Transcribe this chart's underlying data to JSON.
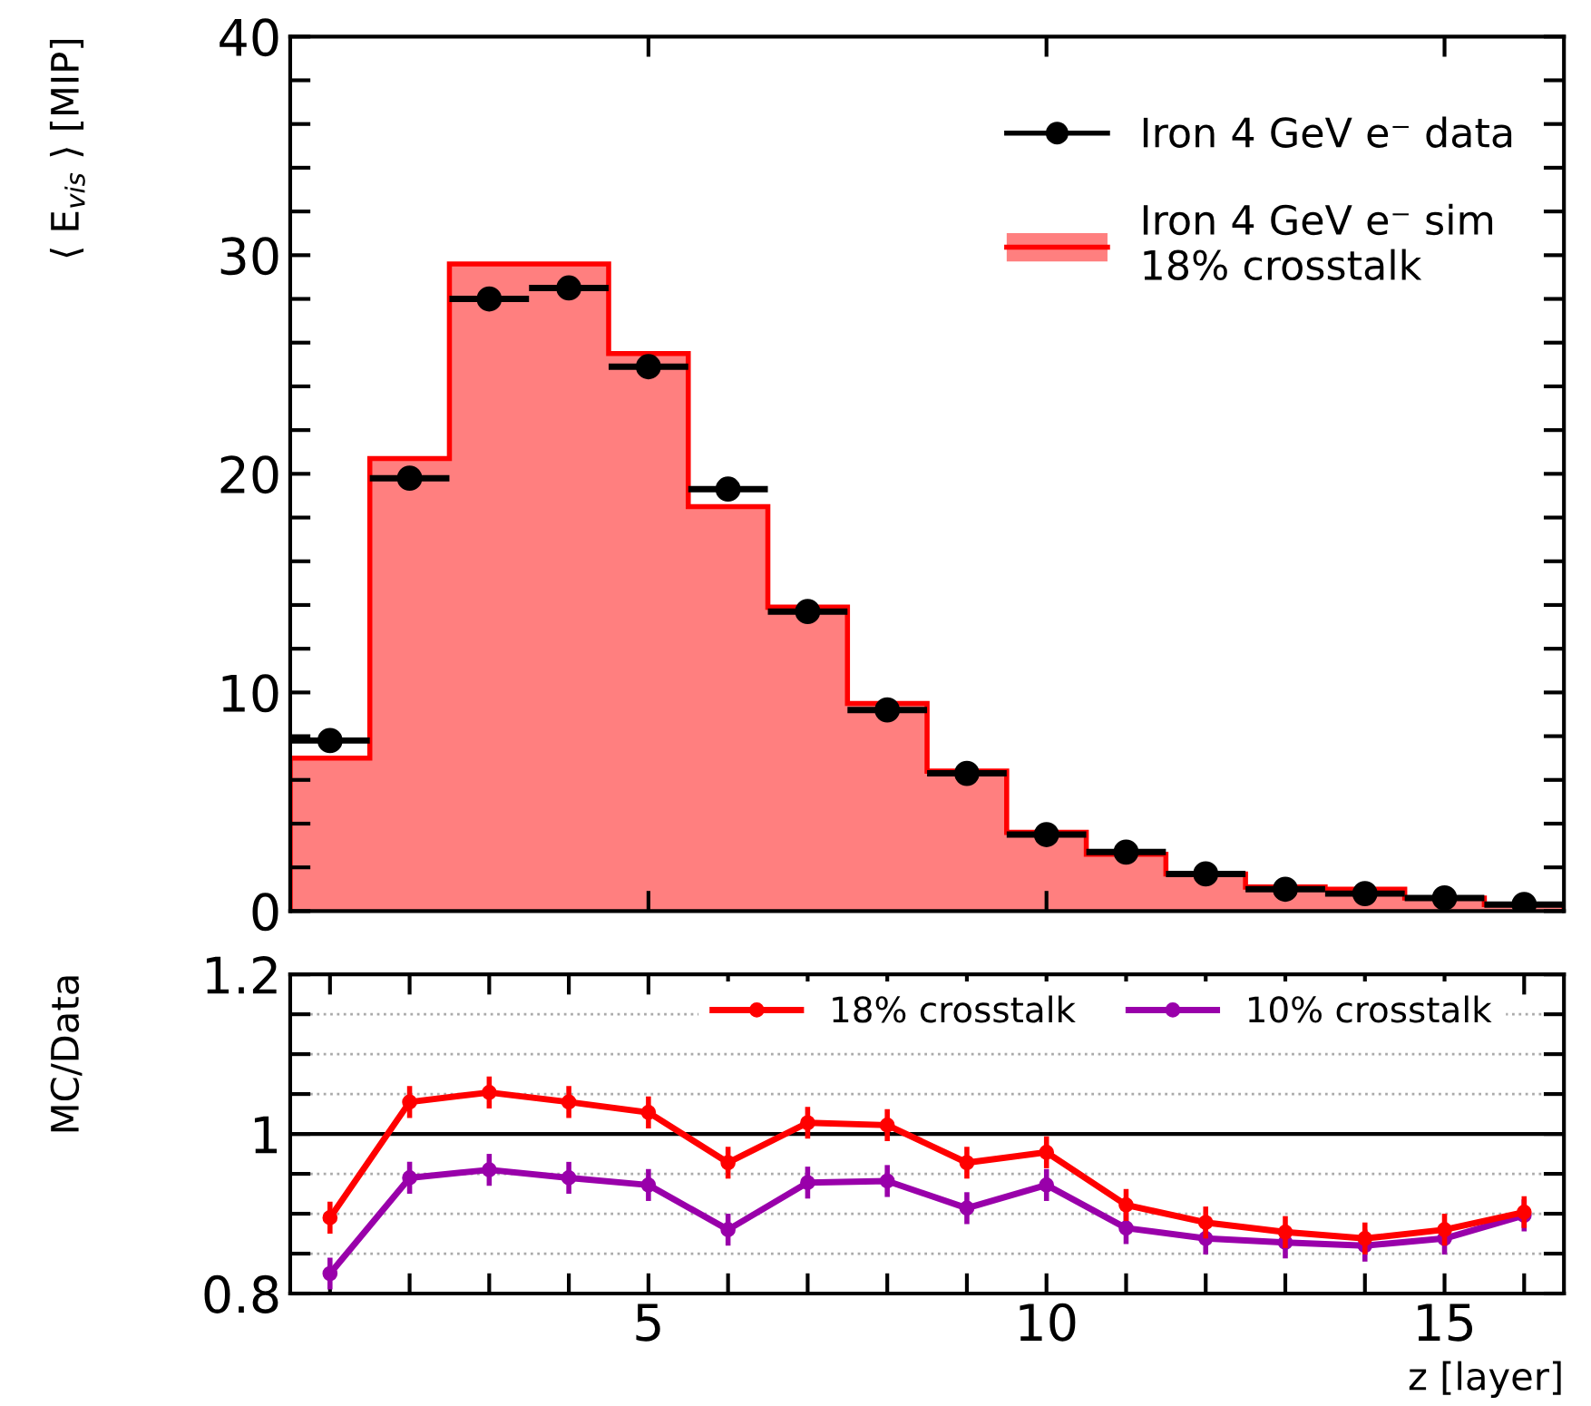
{
  "chart_data": [
    {
      "type": "histogram",
      "ylabel": "⟨ E$_{vis}$ ⟩ [MIP]",
      "bins": [
        0.5,
        1.5,
        2.5,
        3.5,
        4.5,
        5.5,
        6.5,
        7.5,
        8.5,
        9.5,
        10.5,
        11.5,
        12.5,
        13.5,
        14.5,
        15.5,
        16.5
      ],
      "series": [
        {
          "name": "Iron 4 GeV e⁻ data",
          "type": "scatter",
          "color": "#000000",
          "x": [
            1,
            2,
            3,
            4,
            5,
            6,
            7,
            8,
            9,
            10,
            11,
            12,
            13,
            14,
            15,
            16
          ],
          "values": [
            7.8,
            19.8,
            28.0,
            28.5,
            24.9,
            19.3,
            13.7,
            9.2,
            6.3,
            3.5,
            2.7,
            1.7,
            1.0,
            0.8,
            0.6,
            0.3
          ],
          "xerrors": [
            0.5,
            0.5,
            0.5,
            0.5,
            0.5,
            0.5,
            0.5,
            0.5,
            0.5,
            0.5,
            0.5,
            0.5,
            0.5,
            0.5,
            0.5,
            0.5
          ]
        },
        {
          "name": "Iron 4 GeV e⁻ sim\n18% crosstalk",
          "color": "#ff0000",
          "values": [
            7.0,
            20.7,
            29.6,
            29.6,
            25.5,
            18.5,
            13.9,
            9.5,
            6.4,
            3.6,
            2.6,
            1.7,
            1.1,
            1.0,
            0.6,
            0.3
          ]
        }
      ],
      "xlim": [
        0.5,
        16.5
      ],
      "xticks": [
        5,
        10,
        15
      ],
      "ylim": [
        0,
        40
      ],
      "yticks": [
        0,
        {
          "value": 2,
          "label": null
        },
        {
          "value": 4,
          "label": null
        },
        {
          "value": 6,
          "label": null
        },
        {
          "value": 8,
          "label": null
        },
        10,
        {
          "value": 12,
          "label": null
        },
        {
          "value": 14,
          "label": null
        },
        {
          "value": 16,
          "label": null
        },
        {
          "value": 18,
          "label": null
        },
        20,
        {
          "value": 22,
          "label": null
        },
        {
          "value": 24,
          "label": null
        },
        {
          "value": 26,
          "label": null
        },
        {
          "value": 28,
          "label": null
        },
        30,
        {
          "value": 32,
          "label": null
        },
        {
          "value": 34,
          "label": null
        },
        {
          "value": 36,
          "label": null
        },
        {
          "value": 38,
          "label": null
        },
        40
      ],
      "tick_labels": "y",
      "legend": "top right",
      "grid": false
    },
    {
      "type": "line",
      "ylabel": "MC/Data",
      "xlabel": "z [layer]",
      "x": [
        1,
        2,
        3,
        4,
        5,
        6,
        7,
        8,
        9,
        10,
        11,
        12,
        13,
        14,
        15,
        16
      ],
      "series": [
        {
          "name": "18% crosstalk",
          "color": "#ff0000",
          "values": [
            0.895,
            1.04,
            1.052,
            1.04,
            1.027,
            0.964,
            1.014,
            1.011,
            0.964,
            0.977,
            0.911,
            0.889,
            0.877,
            0.869,
            0.88,
            0.902
          ],
          "errors": [
            0.02,
            0.02,
            0.02,
            0.02,
            0.02,
            0.02,
            0.02,
            0.02,
            0.02,
            0.02,
            0.02,
            0.02,
            0.02,
            0.02,
            0.02,
            0.02
          ]
        },
        {
          "name": "10% crosstalk",
          "color": "#9900aa",
          "values": [
            0.825,
            0.945,
            0.955,
            0.945,
            0.936,
            0.88,
            0.939,
            0.941,
            0.907,
            0.936,
            0.882,
            0.869,
            0.864,
            0.86,
            0.869,
            0.898
          ],
          "errors": [
            0.02,
            0.02,
            0.02,
            0.02,
            0.02,
            0.02,
            0.02,
            0.02,
            0.02,
            0.02,
            0.02,
            0.02,
            0.02,
            0.02,
            0.02,
            0.02
          ]
        }
      ],
      "xlim": [
        0.5,
        16.5
      ],
      "xticks": [
        {
          "value": 1,
          "label": null
        },
        {
          "value": 2,
          "label": null
        },
        {
          "value": 3,
          "label": null
        },
        {
          "value": 4,
          "label": null
        },
        5,
        {
          "value": 6,
          "label": null
        },
        {
          "value": 7,
          "label": null
        },
        {
          "value": 8,
          "label": null
        },
        {
          "value": 9,
          "label": null
        },
        10,
        {
          "value": 11,
          "label": null
        },
        {
          "value": 12,
          "label": null
        },
        {
          "value": 13,
          "label": null
        },
        {
          "value": 14,
          "label": null
        },
        15,
        {
          "value": 16,
          "label": null
        }
      ],
      "ylim": [
        0.8,
        1.2
      ],
      "yticks": [
        {
          "value": 0.8,
          "label": "0.8"
        },
        {
          "value": 0.85,
          "label": null
        },
        {
          "value": 0.9,
          "label": null
        },
        {
          "value": 0.95,
          "label": null
        },
        {
          "value": 1.0,
          "label": "1"
        },
        {
          "value": 1.05,
          "label": null
        },
        {
          "value": 1.1,
          "label": null
        },
        {
          "value": 1.15,
          "label": null
        },
        {
          "value": 1.2,
          "label": "1.2"
        }
      ],
      "grid": "y",
      "marker": "circle",
      "line_style": "solid",
      "legend": "top right",
      "ref_lines": [
        {
          "axis": "y",
          "value": 1.0,
          "color": "#000000",
          "line_style": "solid"
        }
      ]
    }
  ]
}
